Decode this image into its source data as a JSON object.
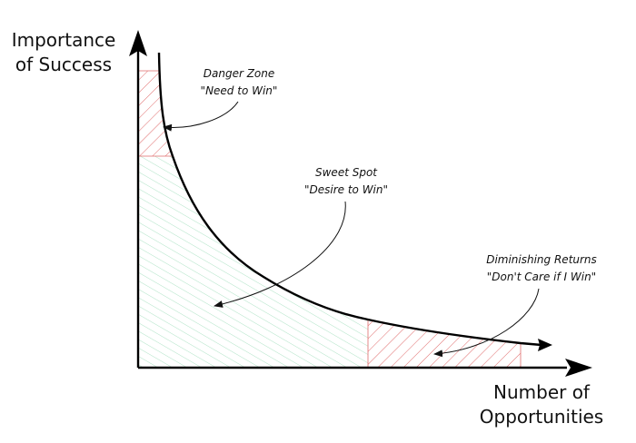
{
  "y_axis": {
    "title_line1": "Importance",
    "title_line2": "of Success"
  },
  "x_axis": {
    "title_line1": "Number of",
    "title_line2": "Opportunities"
  },
  "zones": {
    "danger": {
      "title": "Danger Zone",
      "quote": "\"Need to Win\"",
      "color": "#e06b6b"
    },
    "sweet": {
      "title": "Sweet Spot",
      "quote": "\"Desire to Win\"",
      "color": "#7fcfa6"
    },
    "diminishing": {
      "title": "Diminishing Returns",
      "quote": "\"Don't Care if I Win\"",
      "color": "#e06b6b"
    }
  },
  "colors": {
    "ink": "#111111",
    "curve": "#000000"
  }
}
